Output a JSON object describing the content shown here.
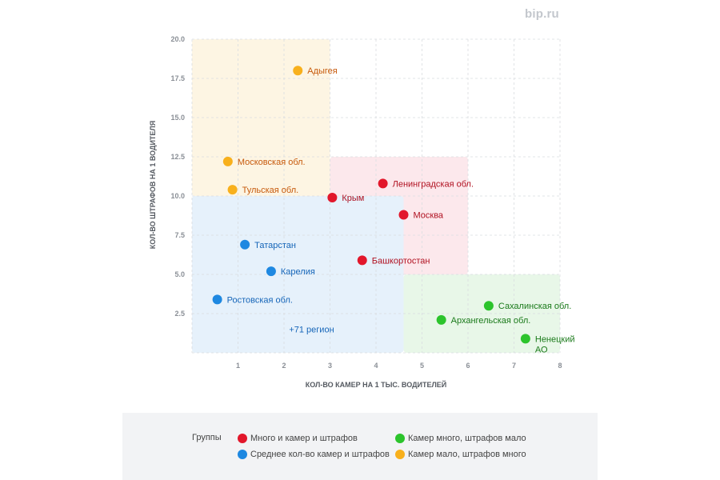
{
  "brand": "bip.ru",
  "colors": {
    "many_both": "#e2172b",
    "medium": "#1e88e1",
    "many_cams_few_fines": "#2cc42c",
    "few_cams_many_fines": "#f8b01c"
  },
  "chart_data": {
    "type": "scatter",
    "xlabel": "КОЛ-ВО КАМЕР НА 1 ТЫС. ВОДИТЕЛЕЙ",
    "ylabel": "КОЛ-ВО ШТРАФОВ НА 1 ВОДИТЕЛЯ",
    "xlim": [
      0,
      8
    ],
    "ylim": [
      0,
      20
    ],
    "x_ticks": [
      "1",
      "2",
      "3",
      "4",
      "5",
      "6",
      "7",
      "8"
    ],
    "y_ticks": [
      "2.5",
      "5.0",
      "7.5",
      "10.0",
      "12.5",
      "15.0",
      "17.5",
      "20.0"
    ],
    "grid": true,
    "regions": [
      {
        "group": "few_cams_many_fines",
        "x": [
          0,
          3
        ],
        "y": [
          10,
          20
        ]
      },
      {
        "group": "many_both",
        "x": [
          3,
          6
        ],
        "y": [
          5,
          12.5
        ]
      },
      {
        "group": "medium",
        "x": [
          0,
          4.6
        ],
        "y": [
          0,
          10
        ]
      },
      {
        "group": "many_cams_few_fines",
        "x": [
          4.6,
          8
        ],
        "y": [
          0,
          5
        ]
      }
    ],
    "points": [
      {
        "label": "Адыгея",
        "x": 2.3,
        "y": 18.0,
        "group": "few_cams_many_fines"
      },
      {
        "label": "Московская обл.",
        "x": 0.78,
        "y": 12.2,
        "group": "few_cams_many_fines"
      },
      {
        "label": "Тульская обл.",
        "x": 0.88,
        "y": 10.4,
        "group": "few_cams_many_fines"
      },
      {
        "label": "Ленинградская обл.",
        "x": 4.15,
        "y": 10.8,
        "group": "many_both"
      },
      {
        "label": "Крым",
        "x": 3.05,
        "y": 9.9,
        "group": "many_both"
      },
      {
        "label": "Москва",
        "x": 4.6,
        "y": 8.8,
        "group": "many_both"
      },
      {
        "label": "Башкортостан",
        "x": 3.7,
        "y": 5.9,
        "group": "many_both"
      },
      {
        "label": "Татарстан",
        "x": 1.15,
        "y": 6.9,
        "group": "medium"
      },
      {
        "label": "Карелия",
        "x": 1.72,
        "y": 5.2,
        "group": "medium"
      },
      {
        "label": "Ростовская обл.",
        "x": 0.55,
        "y": 3.4,
        "group": "medium"
      },
      {
        "label": "Сахалинская обл.",
        "x": 6.45,
        "y": 3.0,
        "group": "many_cams_few_fines"
      },
      {
        "label": "Архангельская обл.",
        "x": 5.42,
        "y": 2.1,
        "group": "many_cams_few_fines"
      },
      {
        "label": "Ненецкий АО",
        "x": 7.25,
        "y": 0.9,
        "group": "many_cams_few_fines"
      }
    ],
    "annotations": [
      {
        "text": "+71 регион",
        "x": 2.6,
        "y": 1.3
      }
    ]
  },
  "legend": {
    "title": "Группы",
    "items": [
      {
        "group": "many_both",
        "label": "Много и камер и штрафов"
      },
      {
        "group": "many_cams_few_fines",
        "label": "Камер много, штрафов мало"
      },
      {
        "group": "medium",
        "label": "Среднее кол-во камер и штрафов"
      },
      {
        "group": "few_cams_many_fines",
        "label": "Камер мало, штрафов много"
      }
    ]
  }
}
